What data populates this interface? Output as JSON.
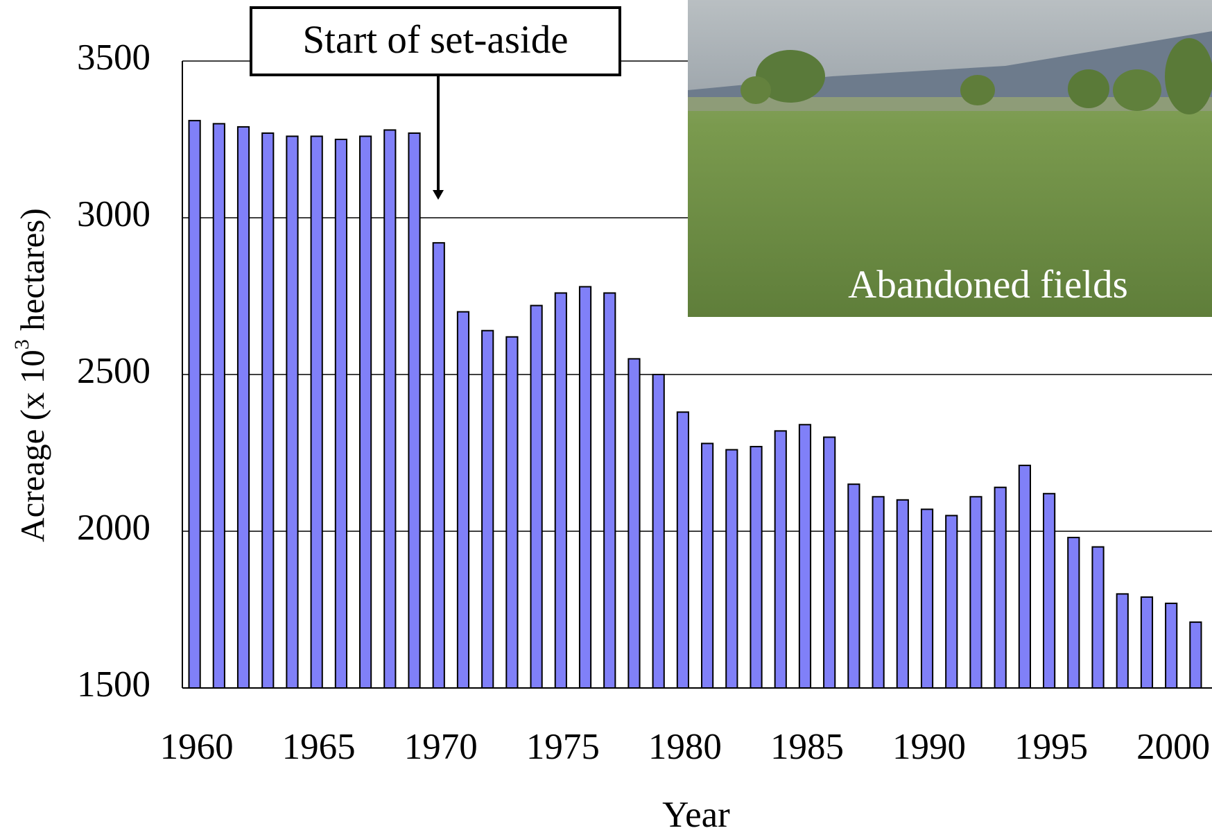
{
  "chart_data": {
    "type": "bar",
    "ylabel_parts": [
      "Acreage (x 10",
      "3",
      " hectares)"
    ],
    "xlabel": "Year",
    "annotations": [
      "Start of set-aside",
      "Abandoned fields"
    ],
    "categories": [
      "1960",
      null,
      null,
      null,
      null,
      "1965",
      null,
      null,
      null,
      null,
      "1970",
      null,
      null,
      null,
      null,
      "1975",
      null,
      null,
      null,
      null,
      "1980",
      null,
      null,
      null,
      null,
      "1985",
      null,
      null,
      null,
      null,
      "1990",
      null,
      null,
      null,
      null,
      "1995",
      null,
      null,
      null,
      null,
      "2000",
      null
    ],
    "values": [
      3310,
      3300,
      3290,
      3270,
      3260,
      3260,
      3250,
      3260,
      3280,
      3270,
      2920,
      2700,
      2640,
      2620,
      2720,
      2760,
      2780,
      2760,
      2550,
      2500,
      2380,
      2280,
      2260,
      2270,
      2320,
      2340,
      2300,
      2150,
      2110,
      2100,
      2070,
      2050,
      2110,
      2140,
      2210,
      2120,
      1980,
      1950,
      1800,
      1790,
      1770,
      1710
    ],
    "color": "#8080f8",
    "ylim": [
      1500,
      3500
    ],
    "yticks": [
      1500,
      2000,
      2500,
      3000,
      3500
    ],
    "grid": true
  }
}
